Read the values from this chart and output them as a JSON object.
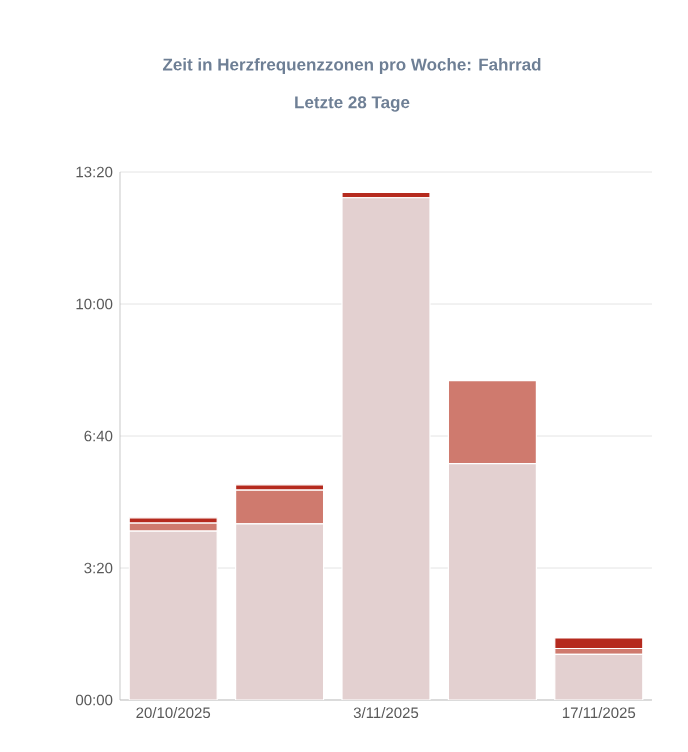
{
  "chart_data": {
    "type": "bar",
    "title": "Zeit in Herzfrequenzzonen pro Woche: Fahrrad",
    "subtitle": "Letzte 28 Tage",
    "stacked": true,
    "grid": "y",
    "categories": [
      "20/10/2025",
      null,
      "3/11/2025",
      null,
      "17/11/2025"
    ],
    "series": [
      {
        "color": "#e3d0d0",
        "values": [
          256,
          267,
          761,
          358,
          69
        ]
      },
      {
        "color": "#cf7a6e",
        "values": [
          12,
          51,
          null,
          126,
          9
        ]
      },
      {
        "color": "#b52a1e",
        "values": [
          8,
          8,
          8,
          0,
          16
        ]
      }
    ],
    "ylim": [
      0,
      800
    ],
    "yticks": [
      {
        "value": 0,
        "label": "00:00"
      },
      {
        "value": 200,
        "label": "3:20"
      },
      {
        "value": 400,
        "label": "6:40"
      },
      {
        "value": 600,
        "label": "10:00"
      },
      {
        "value": 800,
        "label": "13:20"
      }
    ]
  }
}
